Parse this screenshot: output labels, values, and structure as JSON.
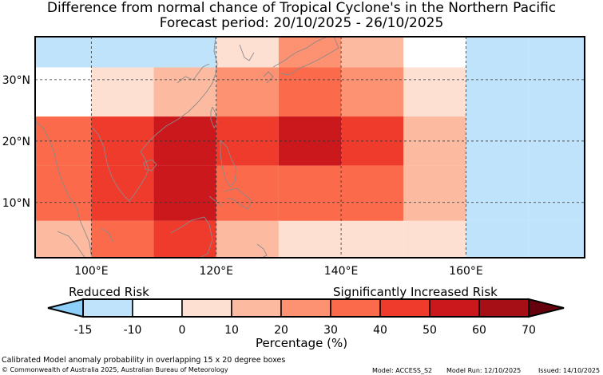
{
  "title": {
    "line1": "Difference from normal chance of Tropical Cyclone's in the Northern Pacific",
    "line2": "Forecast period: 20/10/2025 - 26/10/2025"
  },
  "map": {
    "lon_range": [
      91,
      179
    ],
    "lat_range": [
      1,
      37
    ],
    "lon_ticks": [
      {
        "value": 100,
        "label": "100°E"
      },
      {
        "value": 120,
        "label": "120°E"
      },
      {
        "value": 140,
        "label": "140°E"
      },
      {
        "value": 160,
        "label": "160°E"
      }
    ],
    "lat_ticks": [
      {
        "value": 10,
        "label": "10°N"
      },
      {
        "value": 20,
        "label": "20°N"
      },
      {
        "value": 30,
        "label": "30°N"
      }
    ],
    "cells": [
      {
        "lon": [
          91,
          100
        ],
        "lat": [
          32,
          37
        ],
        "class": -15
      },
      {
        "lon": [
          100,
          110
        ],
        "lat": [
          32,
          37
        ],
        "class": -15
      },
      {
        "lon": [
          110,
          120
        ],
        "lat": [
          32,
          37
        ],
        "class": -15
      },
      {
        "lon": [
          120,
          130
        ],
        "lat": [
          32,
          37
        ],
        "class": 0
      },
      {
        "lon": [
          130,
          140
        ],
        "lat": [
          32,
          37
        ],
        "class": 20
      },
      {
        "lon": [
          140,
          150
        ],
        "lat": [
          32,
          37
        ],
        "class": 10
      },
      {
        "lon": [
          150,
          160
        ],
        "lat": [
          32,
          37
        ],
        "class": -10
      },
      {
        "lon": [
          160,
          170
        ],
        "lat": [
          32,
          37
        ],
        "class": -15
      },
      {
        "lon": [
          170,
          179
        ],
        "lat": [
          32,
          37
        ],
        "class": -15
      },
      {
        "lon": [
          91,
          100
        ],
        "lat": [
          24,
          32
        ],
        "class": -10
      },
      {
        "lon": [
          100,
          110
        ],
        "lat": [
          24,
          32
        ],
        "class": 0
      },
      {
        "lon": [
          110,
          120
        ],
        "lat": [
          24,
          32
        ],
        "class": 10
      },
      {
        "lon": [
          120,
          130
        ],
        "lat": [
          24,
          32
        ],
        "class": 20
      },
      {
        "lon": [
          130,
          140
        ],
        "lat": [
          24,
          32
        ],
        "class": 30
      },
      {
        "lon": [
          140,
          150
        ],
        "lat": [
          24,
          32
        ],
        "class": 20
      },
      {
        "lon": [
          150,
          160
        ],
        "lat": [
          24,
          32
        ],
        "class": 0
      },
      {
        "lon": [
          160,
          170
        ],
        "lat": [
          24,
          32
        ],
        "class": -15
      },
      {
        "lon": [
          170,
          179
        ],
        "lat": [
          24,
          32
        ],
        "class": -15
      },
      {
        "lon": [
          91,
          100
        ],
        "lat": [
          16,
          24
        ],
        "class": 30
      },
      {
        "lon": [
          100,
          110
        ],
        "lat": [
          16,
          24
        ],
        "class": 40
      },
      {
        "lon": [
          110,
          120
        ],
        "lat": [
          16,
          24
        ],
        "class": 50
      },
      {
        "lon": [
          120,
          130
        ],
        "lat": [
          16,
          24
        ],
        "class": 40
      },
      {
        "lon": [
          130,
          140
        ],
        "lat": [
          16,
          24
        ],
        "class": 50
      },
      {
        "lon": [
          140,
          150
        ],
        "lat": [
          16,
          24
        ],
        "class": 40
      },
      {
        "lon": [
          150,
          160
        ],
        "lat": [
          16,
          24
        ],
        "class": 10
      },
      {
        "lon": [
          160,
          170
        ],
        "lat": [
          16,
          24
        ],
        "class": -15
      },
      {
        "lon": [
          170,
          179
        ],
        "lat": [
          16,
          24
        ],
        "class": -15
      },
      {
        "lon": [
          91,
          100
        ],
        "lat": [
          7,
          16
        ],
        "class": 30
      },
      {
        "lon": [
          100,
          110
        ],
        "lat": [
          7,
          16
        ],
        "class": 40
      },
      {
        "lon": [
          110,
          120
        ],
        "lat": [
          7,
          16
        ],
        "class": 50
      },
      {
        "lon": [
          120,
          130
        ],
        "lat": [
          7,
          16
        ],
        "class": 30
      },
      {
        "lon": [
          130,
          140
        ],
        "lat": [
          7,
          16
        ],
        "class": 30
      },
      {
        "lon": [
          140,
          150
        ],
        "lat": [
          7,
          16
        ],
        "class": 30
      },
      {
        "lon": [
          150,
          160
        ],
        "lat": [
          7,
          16
        ],
        "class": 10
      },
      {
        "lon": [
          160,
          170
        ],
        "lat": [
          7,
          16
        ],
        "class": -15
      },
      {
        "lon": [
          170,
          179
        ],
        "lat": [
          7,
          16
        ],
        "class": -15
      },
      {
        "lon": [
          91,
          100
        ],
        "lat": [
          1,
          7
        ],
        "class": 10
      },
      {
        "lon": [
          100,
          110
        ],
        "lat": [
          1,
          7
        ],
        "class": 30
      },
      {
        "lon": [
          110,
          120
        ],
        "lat": [
          1,
          7
        ],
        "class": 40
      },
      {
        "lon": [
          120,
          130
        ],
        "lat": [
          1,
          7
        ],
        "class": 10
      },
      {
        "lon": [
          130,
          140
        ],
        "lat": [
          1,
          7
        ],
        "class": 0
      },
      {
        "lon": [
          140,
          150
        ],
        "lat": [
          1,
          7
        ],
        "class": 0
      },
      {
        "lon": [
          150,
          160
        ],
        "lat": [
          1,
          7
        ],
        "class": 0
      },
      {
        "lon": [
          160,
          170
        ],
        "lat": [
          1,
          7
        ],
        "class": -15
      },
      {
        "lon": [
          170,
          179
        ],
        "lat": [
          1,
          7
        ],
        "class": -15
      }
    ]
  },
  "legend": {
    "reduced_label": "Reduced Risk",
    "increased_label": "Significantly Increased Risk",
    "axis_label": "Percentage (%)",
    "ticks": [
      "-15",
      "-10",
      "0",
      "10",
      "20",
      "30",
      "40",
      "50",
      "60",
      "70"
    ],
    "colors": {
      "below": "#8ccff8",
      "-15": "#bfe3fb",
      "-10": "#ffffff",
      "0": "#fee0d3",
      "10": "#fcbba1",
      "20": "#fc9272",
      "30": "#fb6a4a",
      "40": "#ef3b2c",
      "50": "#cb181d",
      "60": "#a50f15",
      "above": "#67000d"
    }
  },
  "footer": {
    "description": "Calibrated Model anomaly probability in overlapping 15 x 20 degree boxes",
    "copyright": "© Commonwealth of Australia 2025, Australian Bureau of Meteorology",
    "model": "Model: ACCESS_S2",
    "run": "Model Run: 12/10/2025",
    "issued": "Issued: 14/10/2025"
  }
}
